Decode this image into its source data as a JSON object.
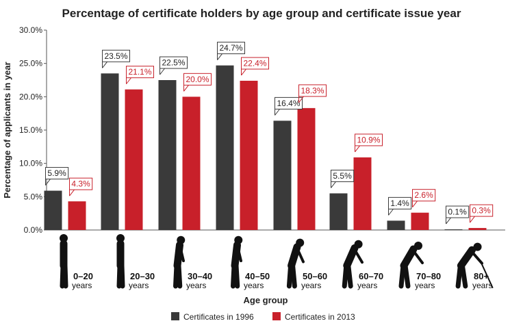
{
  "chart_data": {
    "type": "bar",
    "title": "Percentage of certificate holders by age group and certificate issue year",
    "xlabel": "Age group",
    "ylabel": "Percentage of applicants in year",
    "ylim": [
      0,
      30
    ],
    "yticks": [
      "0.0%",
      "5.0%",
      "10.0%",
      "15.0%",
      "20.0%",
      "25.0%",
      "30.0%"
    ],
    "categories": [
      {
        "main": "0–20",
        "sub": "years"
      },
      {
        "main": "20–30",
        "sub": "years"
      },
      {
        "main": "30–40",
        "sub": "years"
      },
      {
        "main": "40–50",
        "sub": "years"
      },
      {
        "main": "50–60",
        "sub": "years"
      },
      {
        "main": "60–70",
        "sub": "years"
      },
      {
        "main": "70–80",
        "sub": "years"
      },
      {
        "main": "80+",
        "sub": "years"
      }
    ],
    "series": [
      {
        "name": "Certificates in 1996",
        "color": "#3a3a3a",
        "values": [
          5.9,
          23.5,
          22.5,
          24.7,
          16.4,
          5.5,
          1.4,
          0.1
        ],
        "labels": [
          "5.9%",
          "23.5%",
          "22.5%",
          "24.7%",
          "16.4%",
          "5.5%",
          "1.4%",
          "0.1%"
        ]
      },
      {
        "name": "Certificates in 2013",
        "color": "#c8202a",
        "values": [
          4.3,
          21.1,
          20.0,
          22.4,
          18.3,
          10.9,
          2.6,
          0.3
        ],
        "labels": [
          "4.3%",
          "21.1%",
          "20.0%",
          "22.4%",
          "18.3%",
          "10.9%",
          "2.6%",
          "0.3%"
        ]
      }
    ],
    "grid": false,
    "legend_position": "bottom-center",
    "figure_icons": [
      "person-standing-icon",
      "person-standing-icon",
      "person-slight-stoop-icon",
      "person-slight-stoop-icon",
      "person-stooped-icon",
      "person-stooped-icon",
      "person-bent-icon",
      "person-cane-icon"
    ]
  }
}
